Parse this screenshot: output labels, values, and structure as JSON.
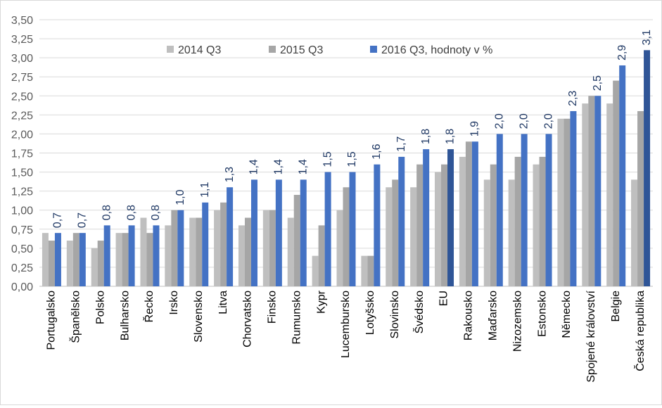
{
  "chart_data": {
    "type": "bar",
    "title": "",
    "xlabel": "",
    "ylabel": "",
    "ylim": [
      0,
      3.5
    ],
    "y_ticks": [
      "0,00",
      "0,25",
      "0,50",
      "0,75",
      "1,00",
      "1,25",
      "1,50",
      "1,75",
      "2,00",
      "2,25",
      "2,50",
      "2,75",
      "3,00",
      "3,25",
      "3,50"
    ],
    "grid": "horizontal",
    "legend_position": "top",
    "categories": [
      "Portugalsko",
      "Španělsko",
      "Polsko",
      "Bulharsko",
      "Řecko",
      "Irsko",
      "Slovensko",
      "Litva",
      "Chorvatsko",
      "Finsko",
      "Rumunsko",
      "Kypr",
      "Lucembursko",
      "Lotyšsko",
      "Slovinsko",
      "Švédsko",
      "EU",
      "Rakousko",
      "Maďarsko",
      "Nizozemsko",
      "Estonsko",
      "Německo",
      "Spojené království",
      "Belgie",
      "Česká republika"
    ],
    "series": [
      {
        "name": "2014 Q3",
        "color": "#bfbfbf",
        "values": [
          0.7,
          0.6,
          0.5,
          0.7,
          0.9,
          0.8,
          0.9,
          1.0,
          0.8,
          1.0,
          0.9,
          0.4,
          1.0,
          0.4,
          1.3,
          1.3,
          1.5,
          1.7,
          1.4,
          1.4,
          1.6,
          2.2,
          2.4,
          2.4,
          1.4
        ]
      },
      {
        "name": "2015 Q3",
        "color": "#a6a6a6",
        "values": [
          0.6,
          0.7,
          0.6,
          0.7,
          0.7,
          1.0,
          0.9,
          1.1,
          0.9,
          1.0,
          1.2,
          0.8,
          1.3,
          0.4,
          1.4,
          1.6,
          1.6,
          1.9,
          1.6,
          1.7,
          1.7,
          2.2,
          2.5,
          2.7,
          2.3
        ]
      },
      {
        "name": "2016 Q3, hodnoty v %",
        "color": "#4472c4",
        "values": [
          0.7,
          0.7,
          0.8,
          0.8,
          0.8,
          1.0,
          1.1,
          1.3,
          1.4,
          1.4,
          1.4,
          1.5,
          1.5,
          1.6,
          1.7,
          1.8,
          1.8,
          1.9,
          2.0,
          2.0,
          2.0,
          2.3,
          2.5,
          2.9,
          3.1
        ],
        "labels": [
          "0,7",
          "0,7",
          "0,8",
          "0,8",
          "0,8",
          "1,0",
          "1,1",
          "1,3",
          "1,4",
          "1,4",
          "1,4",
          "1,5",
          "1,5",
          "1,6",
          "1,7",
          "1,8",
          "1,8",
          "1,9",
          "2,0",
          "2,0",
          "2,0",
          "2,3",
          "2,5",
          "2,9",
          "3,1"
        ]
      }
    ],
    "highlight_color": "#2f5597",
    "highlight_categories": [
      "EU",
      "Česká republika"
    ],
    "label_color": "#1f3864"
  }
}
